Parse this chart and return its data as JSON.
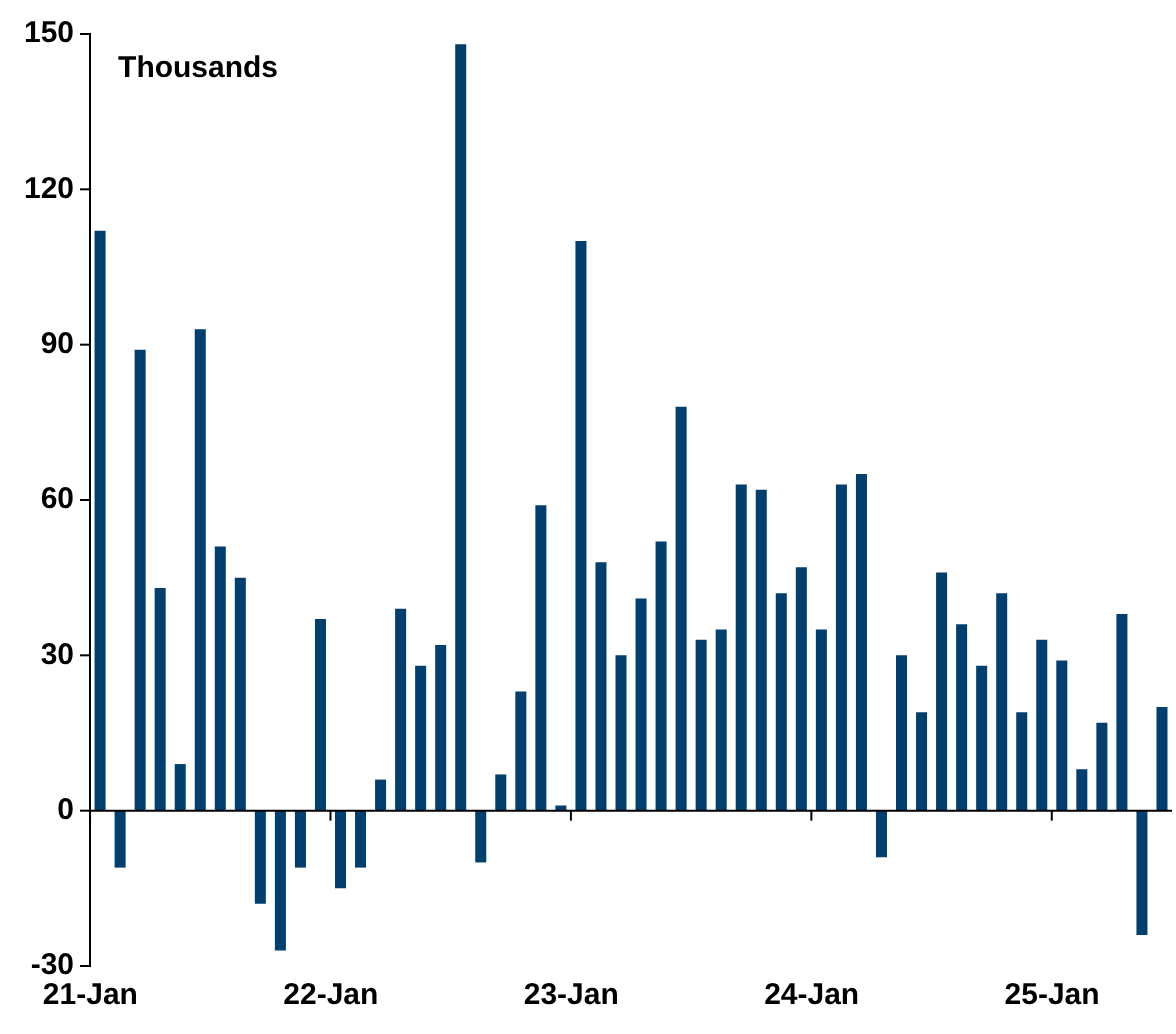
{
  "chart_data": {
    "type": "bar",
    "ylabel": "Thousands",
    "categories": [
      "21-Jan",
      null,
      null,
      null,
      null,
      null,
      null,
      null,
      null,
      null,
      null,
      null,
      "22-Jan",
      null,
      null,
      null,
      null,
      null,
      null,
      null,
      null,
      null,
      null,
      null,
      "23-Jan",
      null,
      null,
      null,
      null,
      null,
      null,
      null,
      null,
      null,
      null,
      null,
      "24-Jan",
      null,
      null,
      null,
      null,
      null,
      null,
      null,
      null,
      null,
      null,
      null,
      "25-Jan",
      null,
      null,
      null,
      null,
      null
    ],
    "values": [
      112,
      -11,
      89,
      43,
      9,
      93,
      51,
      45,
      -18,
      -27,
      -11,
      37,
      -15,
      -11,
      6,
      39,
      28,
      32,
      148,
      -10,
      7,
      23,
      59,
      1,
      110,
      48,
      30,
      41,
      52,
      78,
      33,
      35,
      63,
      62,
      42,
      47,
      35,
      63,
      65,
      -9,
      30,
      19,
      46,
      36,
      28,
      42,
      19,
      33,
      29,
      8,
      17,
      38,
      -24,
      20
    ],
    "color": "#003f6e",
    "ylim": [
      -30,
      150
    ],
    "yticks": [
      -30,
      0,
      30,
      60,
      90,
      120,
      150
    ],
    "legend": false
  }
}
